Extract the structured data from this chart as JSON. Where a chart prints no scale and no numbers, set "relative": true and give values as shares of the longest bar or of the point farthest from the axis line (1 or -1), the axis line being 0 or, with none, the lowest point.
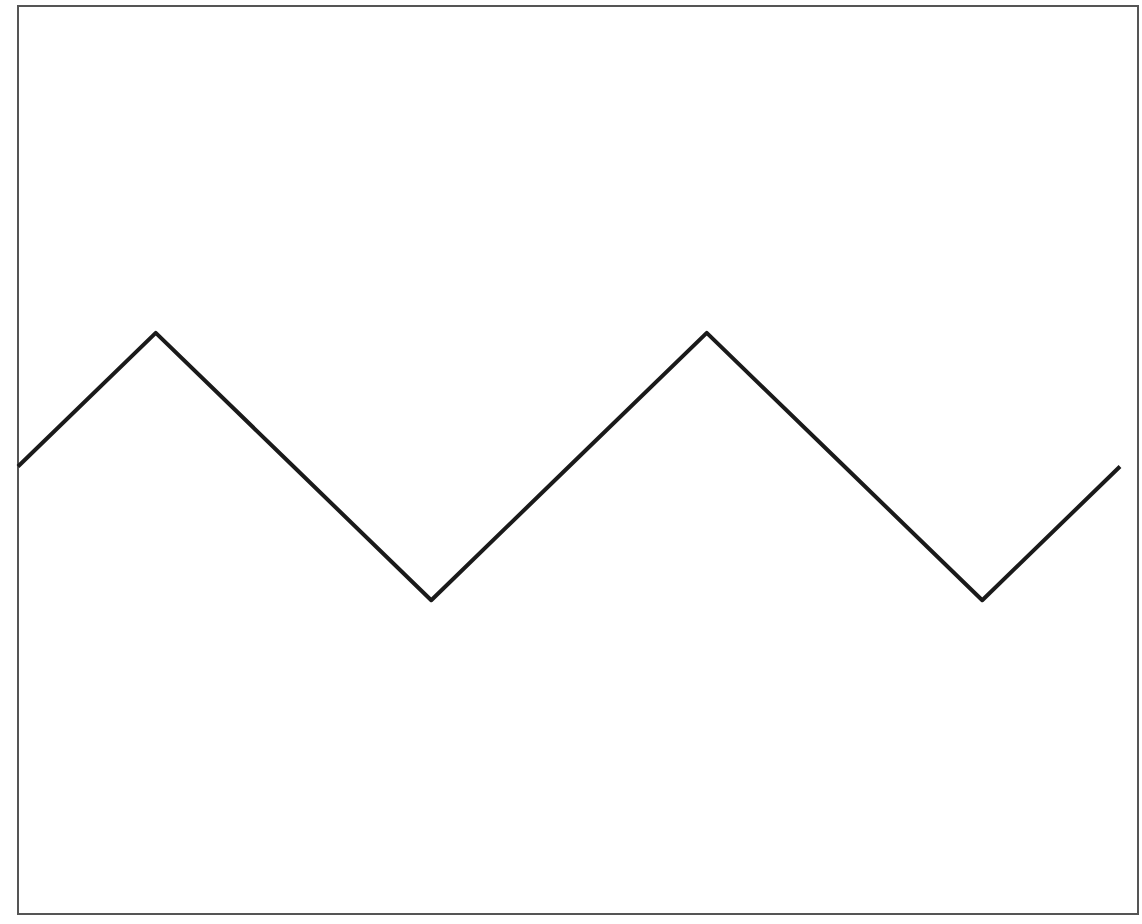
{
  "chart_data": {
    "type": "line",
    "relative": true,
    "categories": [
      null,
      null,
      null,
      null,
      null,
      null,
      null,
      null,
      null
    ],
    "series": [
      {
        "color": "#1a1a1a",
        "values": [
          0.77,
          1,
          0.77,
          0.54,
          0.77,
          1,
          0.77,
          0.54,
          0.77
        ]
      }
    ],
    "marker": "none"
  }
}
